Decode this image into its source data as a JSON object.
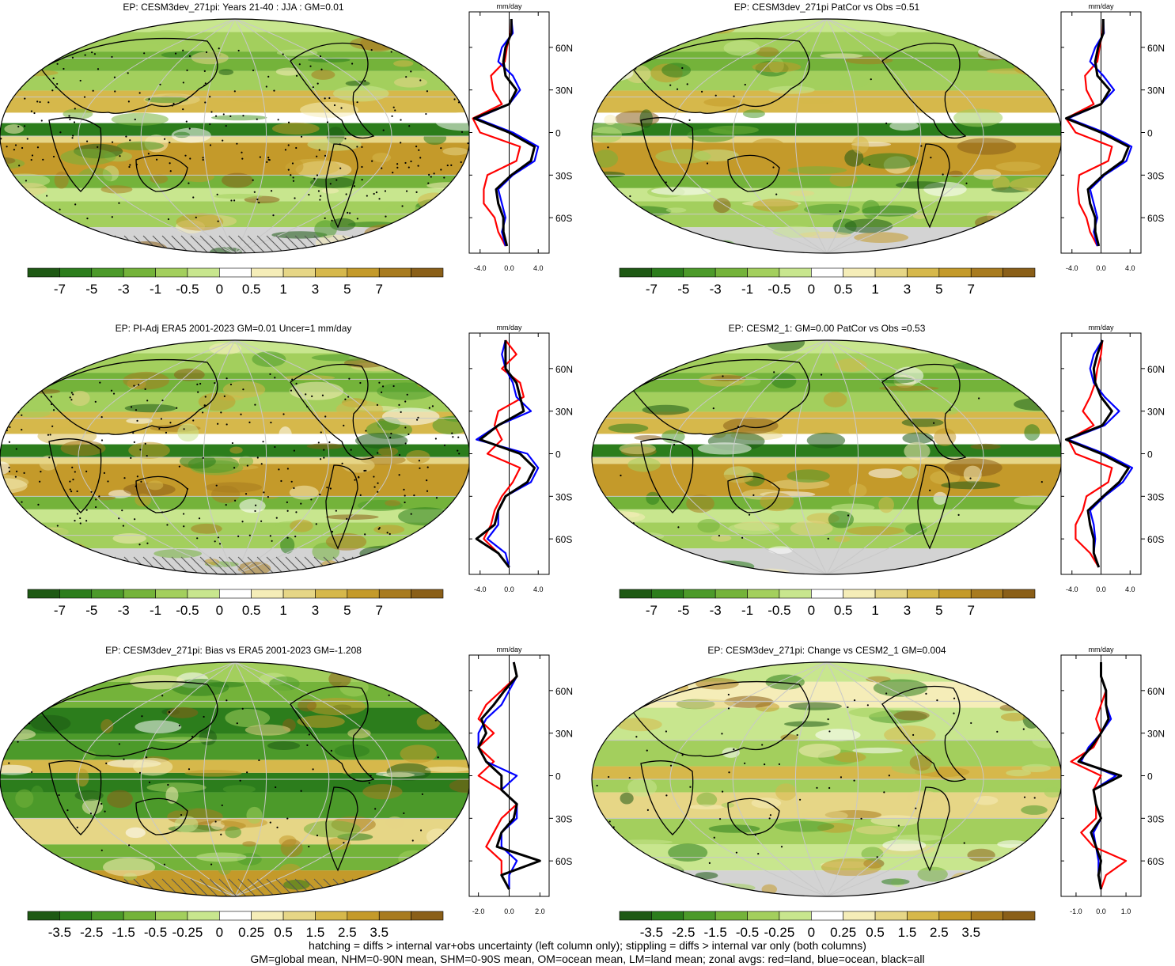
{
  "panels": [
    {
      "title": "EP: CESM3dev_271pi: Years 21-40 : JJA : GM=0.01",
      "kind": "clim",
      "hatch": true,
      "stipple": "dense",
      "colorbar": {
        "labels": [
          "-7",
          "-5",
          "-3",
          "-1",
          "-0.5",
          "0",
          "0.5",
          "1",
          "3",
          "5",
          "7"
        ]
      },
      "zonal": {
        "unit": "mm/day",
        "xticks": [
          "-4.0",
          "0.0",
          "4.0"
        ],
        "xlim": [
          -5.5,
          5.5
        ]
      }
    },
    {
      "title": "EP: CESM3dev_271pi PatCor vs Obs =0.51",
      "kind": "clim",
      "hatch": false,
      "stipple": "none",
      "colorbar": {
        "labels": [
          "-7",
          "-5",
          "-3",
          "-1",
          "-0.5",
          "0",
          "0.5",
          "1",
          "3",
          "5",
          "7"
        ]
      },
      "zonal": {
        "unit": "mm/day",
        "xticks": [
          "-4.0",
          "0.0",
          "4.0"
        ],
        "xlim": [
          -5.5,
          5.5
        ]
      }
    },
    {
      "title": "EP: PI-Adj ERA5 2001-2023 GM=0.01 Uncer=1 mm/day",
      "kind": "obs",
      "hatch": true,
      "stipple": "dense",
      "colorbar": {
        "labels": [
          "-7",
          "-5",
          "-3",
          "-1",
          "-0.5",
          "0",
          "0.5",
          "1",
          "3",
          "5",
          "7"
        ]
      },
      "zonal": {
        "unit": "mm/day",
        "xticks": [
          "-4.0",
          "0.0",
          "4.0"
        ],
        "xlim": [
          -5.5,
          5.5
        ]
      }
    },
    {
      "title": "EP: CESM2_1: GM=0.00 PatCor vs Obs =0.53",
      "kind": "clim",
      "hatch": false,
      "stipple": "none",
      "colorbar": {
        "labels": [
          "-7",
          "-5",
          "-3",
          "-1",
          "-0.5",
          "0",
          "0.5",
          "1",
          "3",
          "5",
          "7"
        ]
      },
      "zonal": {
        "unit": "mm/day",
        "xticks": [
          "-4.0",
          "0.0",
          "4.0"
        ],
        "xlim": [
          -5.5,
          5.5
        ]
      }
    },
    {
      "title": "EP: CESM3dev_271pi: Bias vs ERA5 2001-2023 GM=-1.208",
      "kind": "bias",
      "hatch": true,
      "stipple": "sparse",
      "colorbar": {
        "labels": [
          "-3.5",
          "-2.5",
          "-1.5",
          "-0.5",
          "-0.25",
          "0",
          "0.25",
          "0.5",
          "1.5",
          "2.5",
          "3.5"
        ]
      },
      "zonal": {
        "unit": "mm/day",
        "xticks": [
          "-2.0",
          "0.0",
          "2.0"
        ],
        "xlim": [
          -2.6,
          2.6
        ]
      }
    },
    {
      "title": "EP: CESM3dev_271pi: Change vs CESM2_1 GM=0.004",
      "kind": "change",
      "hatch": false,
      "stipple": "sparse",
      "colorbar": {
        "labels": [
          "-3.5",
          "-2.5",
          "-1.5",
          "-0.5",
          "-0.25",
          "0",
          "0.25",
          "0.5",
          "1.5",
          "2.5",
          "3.5"
        ]
      },
      "zonal": {
        "unit": "mm/day",
        "xticks": [
          "-1.0",
          "0.0",
          "1.0"
        ],
        "xlim": [
          -1.6,
          1.6
        ]
      }
    }
  ],
  "chart_data": {
    "type": "line",
    "description_axes": {
      "ylabels": [
        "60N",
        "30N",
        "0",
        "30S",
        "60S"
      ],
      "ylim": [
        -85,
        85
      ]
    },
    "lat": [
      80,
      70,
      60,
      50,
      40,
      30,
      20,
      10,
      0,
      -10,
      -20,
      -30,
      -40,
      -50,
      -60,
      -70,
      -80
    ],
    "panels": [
      {
        "series": [
          {
            "name": "land",
            "color": "#ff0000",
            "values": [
              0.3,
              0.2,
              -0.3,
              -0.6,
              -2.5,
              -2.2,
              -1.0,
              -5.0,
              -4.0,
              1.5,
              1.0,
              -3.0,
              -3.5,
              -3.5,
              -2.0,
              -1.5,
              -0.5
            ]
          },
          {
            "name": "ocean",
            "color": "#0000ff",
            "values": [
              0.3,
              0.5,
              -1.0,
              -1.5,
              0.5,
              1.5,
              0.0,
              -4.5,
              0.5,
              4.0,
              3.5,
              0.5,
              -1.5,
              -1.0,
              -0.5,
              -1.0,
              -0.5
            ]
          },
          {
            "name": "all",
            "color": "#000000",
            "values": [
              0.3,
              0.3,
              -0.5,
              -0.8,
              -0.5,
              1.0,
              0.0,
              -4.8,
              0.0,
              3.5,
              3.0,
              0.3,
              -1.8,
              -1.5,
              -0.8,
              -0.8,
              -0.3
            ]
          }
        ]
      },
      {
        "series": [
          {
            "name": "land",
            "color": "#ff0000",
            "values": [
              0.3,
              0.2,
              -0.2,
              -0.5,
              -2.2,
              -2.0,
              -1.0,
              -4.8,
              -3.5,
              1.5,
              1.0,
              -3.0,
              -3.2,
              -3.0,
              -2.0,
              -1.5,
              -0.5
            ]
          },
          {
            "name": "ocean",
            "color": "#0000ff",
            "values": [
              0.3,
              0.4,
              -0.8,
              -1.5,
              0.3,
              1.8,
              0.0,
              -4.5,
              0.5,
              4.2,
              3.5,
              0.5,
              -1.5,
              -1.0,
              -0.5,
              -1.0,
              -0.5
            ]
          },
          {
            "name": "all",
            "color": "#000000",
            "values": [
              0.3,
              0.3,
              -0.4,
              -0.8,
              -0.5,
              1.2,
              0.0,
              -4.8,
              0.0,
              3.8,
              3.0,
              0.3,
              -1.8,
              -1.5,
              -0.8,
              -0.8,
              -0.3
            ]
          }
        ]
      },
      {
        "series": [
          {
            "name": "land",
            "color": "#ff0000",
            "values": [
              -0.5,
              1.0,
              -1.0,
              1.5,
              2.0,
              -1.5,
              -2.0,
              -1.0,
              -3.0,
              1.5,
              0.5,
              -1.0,
              -2.0,
              -2.5,
              -3.5,
              -1.5,
              0.0
            ]
          },
          {
            "name": "ocean",
            "color": "#0000ff",
            "values": [
              -0.5,
              -1.0,
              -0.5,
              0.5,
              1.0,
              3.0,
              -1.5,
              -4.5,
              2.5,
              4.0,
              3.0,
              -0.5,
              -1.5,
              -1.5,
              -3.0,
              -0.5,
              0.0
            ]
          },
          {
            "name": "all",
            "color": "#000000",
            "values": [
              -0.5,
              -0.5,
              -0.5,
              1.0,
              1.5,
              2.0,
              -1.5,
              -4.0,
              1.5,
              3.5,
              2.5,
              -0.5,
              -1.5,
              -2.0,
              -4.5,
              -1.5,
              0.0
            ]
          }
        ]
      },
      {
        "series": [
          {
            "name": "land",
            "color": "#ff0000",
            "values": [
              0.2,
              0.0,
              -0.5,
              -0.8,
              -1.5,
              -2.5,
              -1.0,
              -4.5,
              -3.5,
              1.5,
              1.0,
              -2.0,
              -2.5,
              -3.5,
              -3.5,
              -1.5,
              -0.3
            ]
          },
          {
            "name": "ocean",
            "color": "#0000ff",
            "values": [
              0.2,
              -1.0,
              -1.5,
              -1.0,
              0.5,
              2.5,
              0.5,
              -4.5,
              0.5,
              4.3,
              3.0,
              0.5,
              -1.5,
              -1.0,
              -0.8,
              -1.0,
              -0.3
            ]
          },
          {
            "name": "all",
            "color": "#000000",
            "values": [
              0.2,
              -0.5,
              -1.0,
              -0.8,
              0.0,
              1.5,
              0.2,
              -4.8,
              0.0,
              3.8,
              2.5,
              0.3,
              -1.8,
              -1.5,
              -1.0,
              -1.0,
              -0.3
            ]
          }
        ]
      },
      {
        "series": [
          {
            "name": "land",
            "color": "#ff0000",
            "values": [
              0.3,
              0.5,
              -0.5,
              -1.5,
              -2.0,
              -1.0,
              -2.0,
              -1.0,
              -2.0,
              -0.5,
              0.5,
              -0.5,
              -1.0,
              -1.5,
              -0.5,
              -0.5,
              0.0
            ]
          },
          {
            "name": "ocean",
            "color": "#0000ff",
            "values": [
              0.3,
              0.5,
              0.0,
              -0.5,
              -1.5,
              -2.0,
              -2.0,
              -1.5,
              0.5,
              -0.5,
              0.5,
              0.5,
              -0.5,
              -0.5,
              0.5,
              0.0,
              0.0
            ]
          },
          {
            "name": "all",
            "color": "#000000",
            "values": [
              0.3,
              0.5,
              -0.3,
              -1.0,
              -1.8,
              -1.5,
              -2.0,
              -1.5,
              -0.5,
              -0.5,
              0.5,
              0.3,
              -0.5,
              -0.8,
              2.0,
              -0.5,
              0.0
            ]
          }
        ]
      },
      {
        "series": [
          {
            "name": "land",
            "color": "#ff0000",
            "values": [
              0.0,
              0.0,
              0.2,
              0.0,
              -0.2,
              0.0,
              -0.3,
              -1.2,
              0.0,
              -0.3,
              -0.2,
              -0.2,
              -0.8,
              -0.3,
              1.0,
              0.2,
              0.0
            ]
          },
          {
            "name": "ocean",
            "color": "#0000ff",
            "values": [
              0.0,
              0.0,
              0.2,
              0.2,
              0.4,
              0.0,
              -0.5,
              -0.8,
              0.6,
              -0.3,
              -0.2,
              0.0,
              -0.3,
              -0.2,
              -0.1,
              -0.1,
              0.0
            ]
          },
          {
            "name": "all",
            "color": "#000000",
            "values": [
              0.0,
              0.0,
              0.2,
              0.2,
              0.3,
              0.0,
              -0.4,
              -0.9,
              0.8,
              -0.3,
              -0.2,
              0.0,
              -0.4,
              -0.2,
              0.0,
              -0.1,
              0.0
            ]
          }
        ]
      }
    ]
  },
  "colorbar_colors": {
    "sequence": [
      "#1e5914",
      "#2c7d1c",
      "#4c9a2a",
      "#74b33a",
      "#a3cf5d",
      "#c8e68e",
      "#ffffff",
      "#f5edb8",
      "#e6d686",
      "#d6b84b",
      "#c49a2a",
      "#a87b1f",
      "#8a5f18"
    ]
  },
  "map_colors": {
    "land_outline": "#000000",
    "grid": "#c8c8c8",
    "missing": "#d3d3d3"
  },
  "footer": {
    "line1": "hatching = diffs > internal var+obs uncertainty (left column only); stippling = diffs > internal var only (both columns)",
    "line2": "GM=global mean, NHM=0-90N mean, SHM=0-90S mean, OM=ocean mean, LM=land mean; zonal avgs: red=land, blue=ocean, black=all"
  }
}
